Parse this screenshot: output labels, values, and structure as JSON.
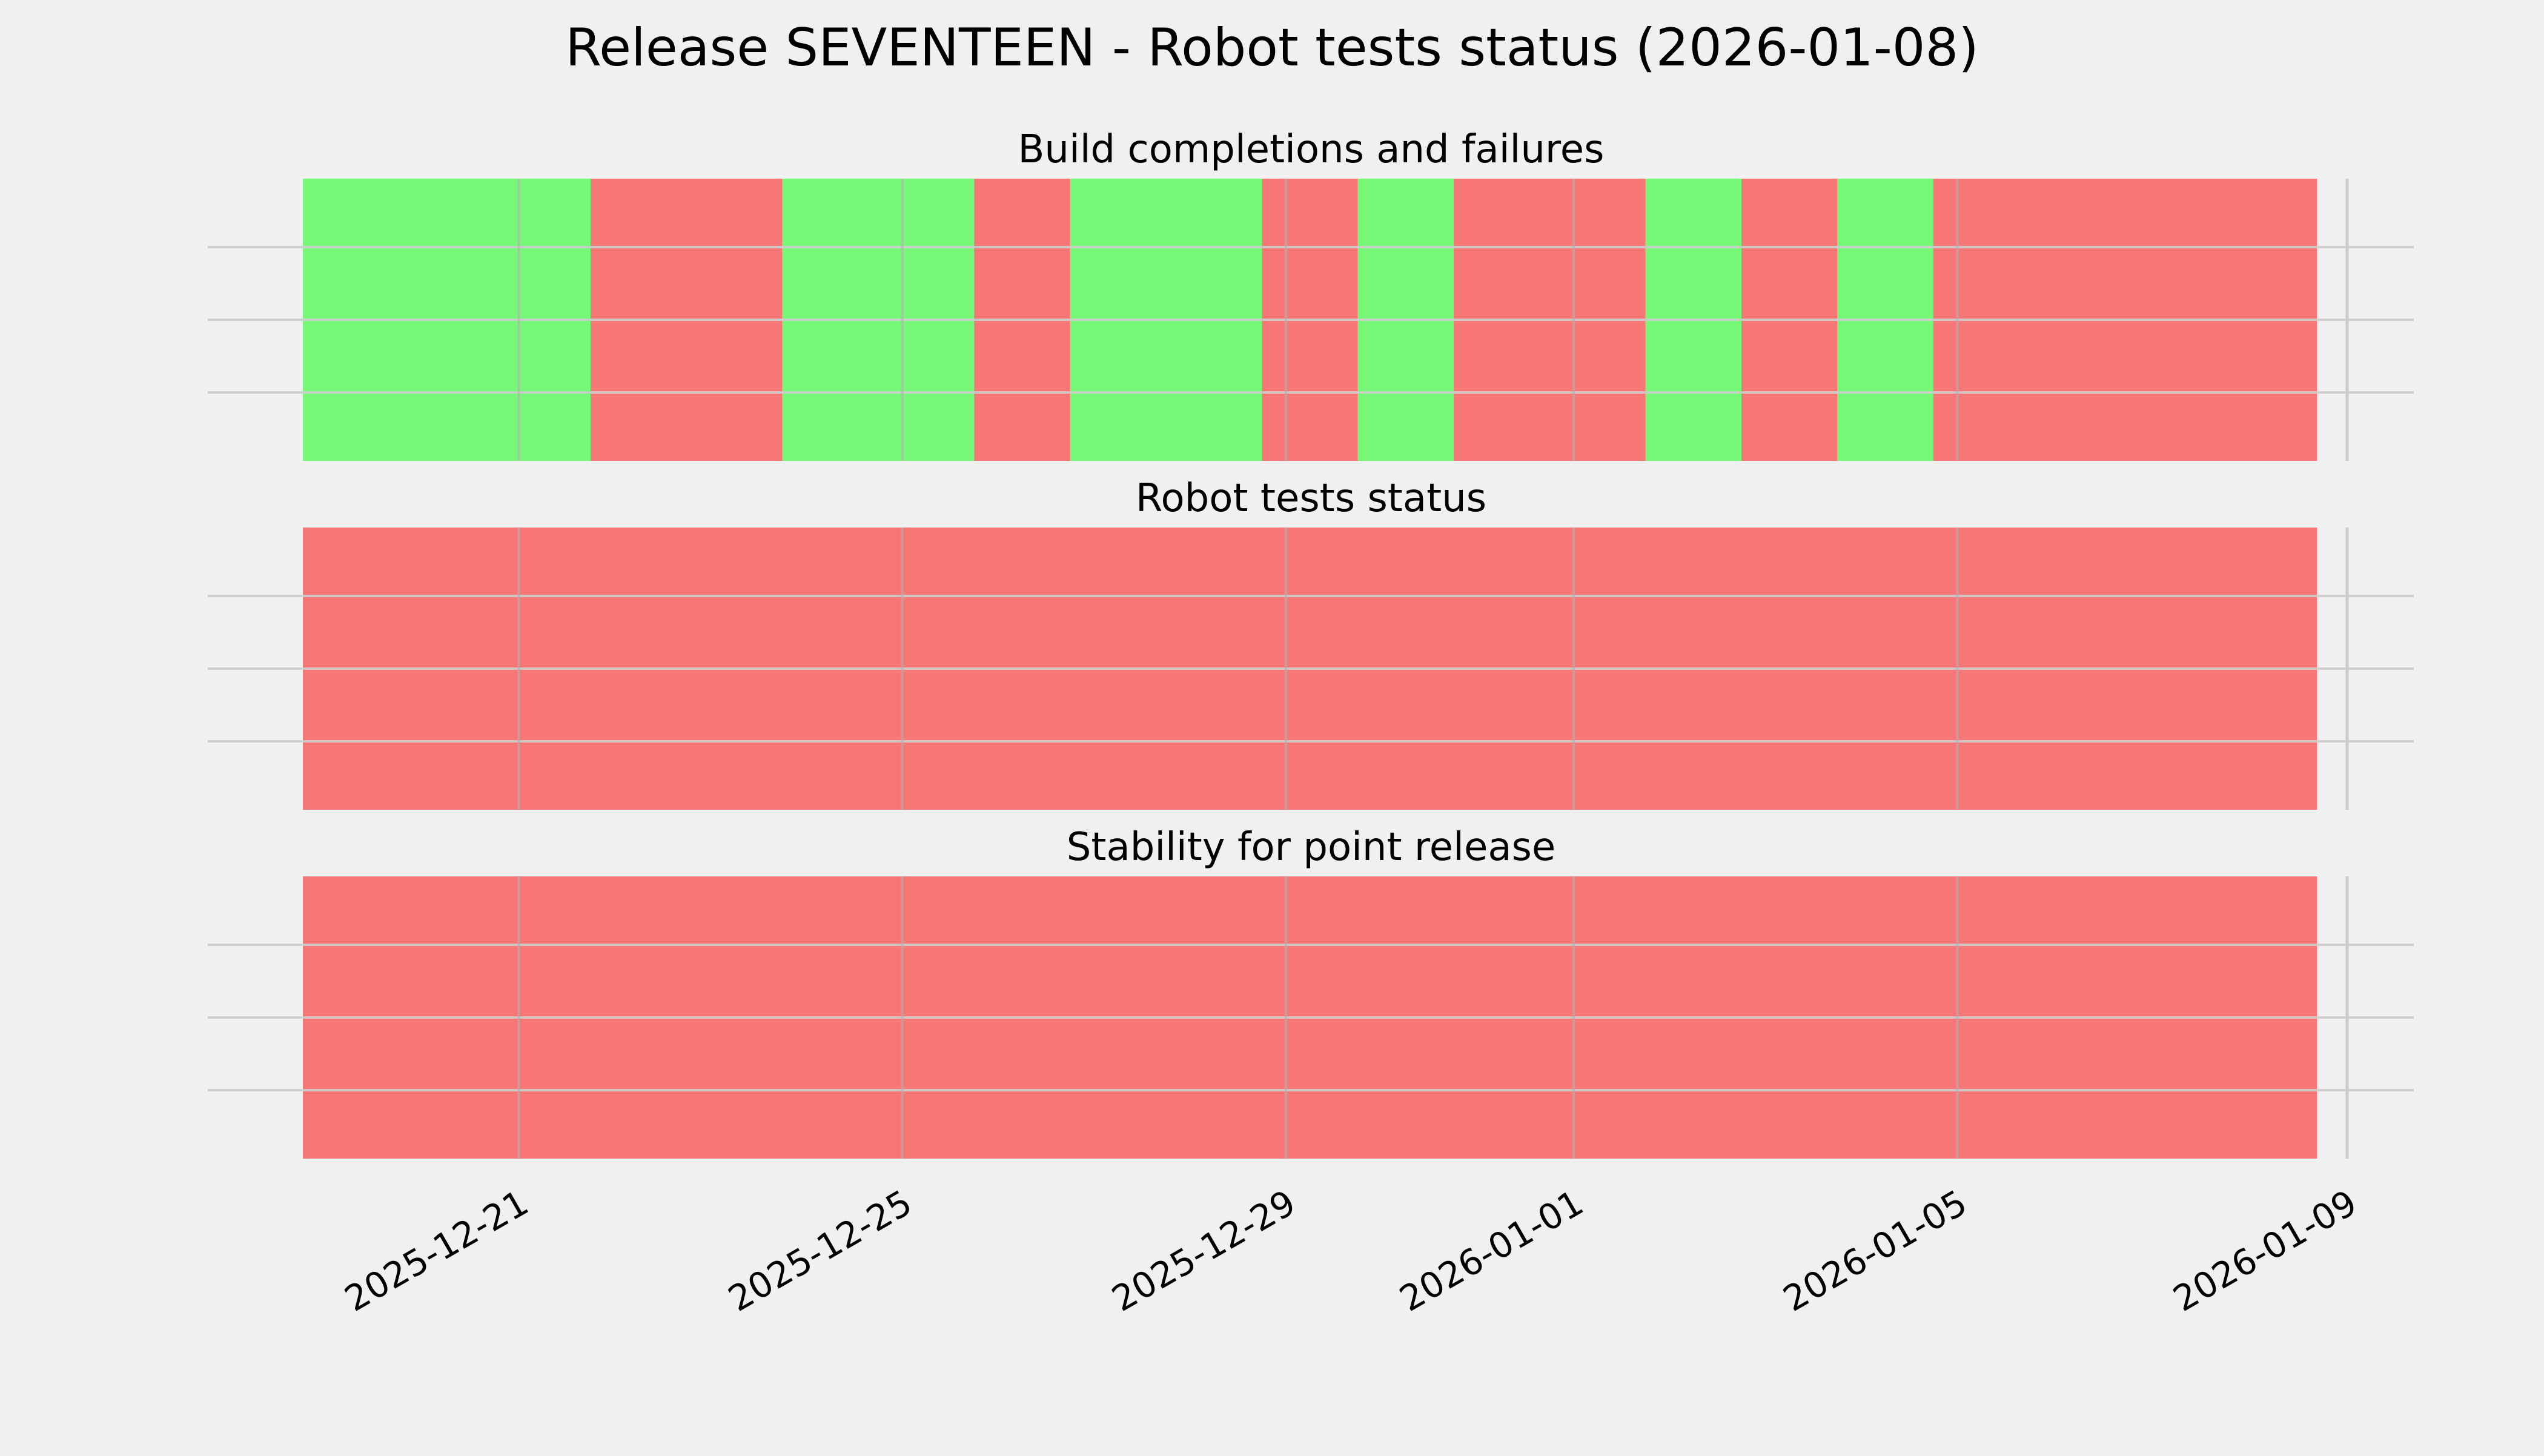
{
  "chart_data": {
    "type": "timeline",
    "title": "Release SEVENTEEN - Robot tests status (2026-01-08)",
    "colors": {
      "background": "#f0f0f0",
      "pass": "#77f777",
      "fail": "#f77777",
      "grid": "#cbcbcb"
    },
    "x_range": [
      "2025-12-18T18:00",
      "2026-01-09T09:00"
    ],
    "x_ticks": [
      "2025-12-21",
      "2025-12-25",
      "2025-12-29",
      "2026-01-01",
      "2026-01-05",
      "2026-01-09"
    ],
    "grid": true,
    "panels": [
      {
        "title": "Build completions and failures",
        "segments": [
          {
            "start": "2025-12-18T18:00",
            "end": "2025-12-21T18:00",
            "status": "pass"
          },
          {
            "start": "2025-12-21T18:00",
            "end": "2025-12-23T18:00",
            "status": "fail"
          },
          {
            "start": "2025-12-23T18:00",
            "end": "2025-12-25T18:00",
            "status": "pass"
          },
          {
            "start": "2025-12-25T18:00",
            "end": "2025-12-26T18:00",
            "status": "fail"
          },
          {
            "start": "2025-12-26T18:00",
            "end": "2025-12-28T18:00",
            "status": "pass"
          },
          {
            "start": "2025-12-28T18:00",
            "end": "2025-12-29T18:00",
            "status": "fail"
          },
          {
            "start": "2025-12-29T18:00",
            "end": "2025-12-30T18:00",
            "status": "pass"
          },
          {
            "start": "2025-12-30T18:00",
            "end": "2026-01-01T18:00",
            "status": "fail"
          },
          {
            "start": "2026-01-01T18:00",
            "end": "2026-01-02T18:00",
            "status": "pass"
          },
          {
            "start": "2026-01-02T18:00",
            "end": "2026-01-03T18:00",
            "status": "fail"
          },
          {
            "start": "2026-01-03T18:00",
            "end": "2026-01-04T18:00",
            "status": "pass"
          },
          {
            "start": "2026-01-04T18:00",
            "end": "2026-01-08T18:00",
            "status": "fail"
          }
        ]
      },
      {
        "title": "Robot tests status",
        "segments": [
          {
            "start": "2025-12-18T18:00",
            "end": "2026-01-08T18:00",
            "status": "fail"
          }
        ]
      },
      {
        "title": "Stability for point release",
        "segments": [
          {
            "start": "2025-12-18T18:00",
            "end": "2026-01-08T18:00",
            "status": "fail"
          }
        ]
      }
    ]
  }
}
